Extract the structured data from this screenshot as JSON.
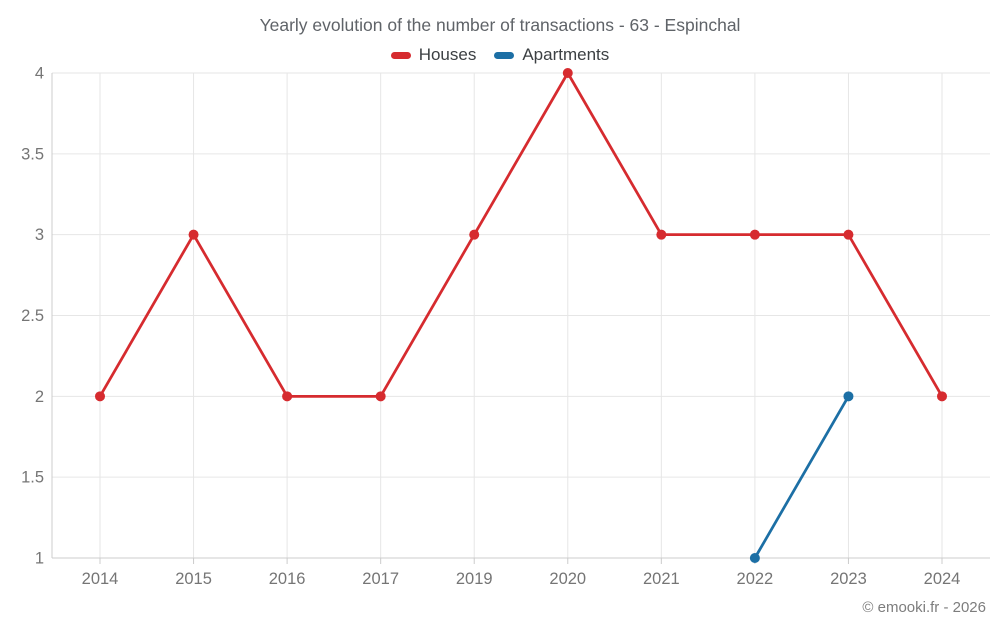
{
  "footer": {
    "copyright": "© emooki.fr - 2026"
  },
  "chart_data": {
    "type": "line",
    "title": "Yearly evolution of the number of transactions - 63 - Espinchal",
    "categories": [
      "2014",
      "2015",
      "2016",
      "2017",
      "2019",
      "2020",
      "2021",
      "2022",
      "2023",
      "2024"
    ],
    "series": [
      {
        "name": "Houses",
        "color": "#d62b2f",
        "values": [
          2,
          3,
          2,
          2,
          3,
          4,
          3,
          3,
          3,
          2
        ]
      },
      {
        "name": "Apartments",
        "color": "#1c6fa5",
        "values": [
          null,
          null,
          null,
          null,
          null,
          null,
          null,
          1,
          2,
          null
        ]
      }
    ],
    "xlabel": "",
    "ylabel": "",
    "ylim": [
      1,
      4
    ],
    "yticks": [
      1,
      1.5,
      2,
      2.5,
      3,
      3.5,
      4
    ],
    "grid": true,
    "legend_position": "top",
    "grid_color": "#e6e6e6",
    "axis_color": "#cccccc",
    "tick_label_color": "#757575"
  }
}
